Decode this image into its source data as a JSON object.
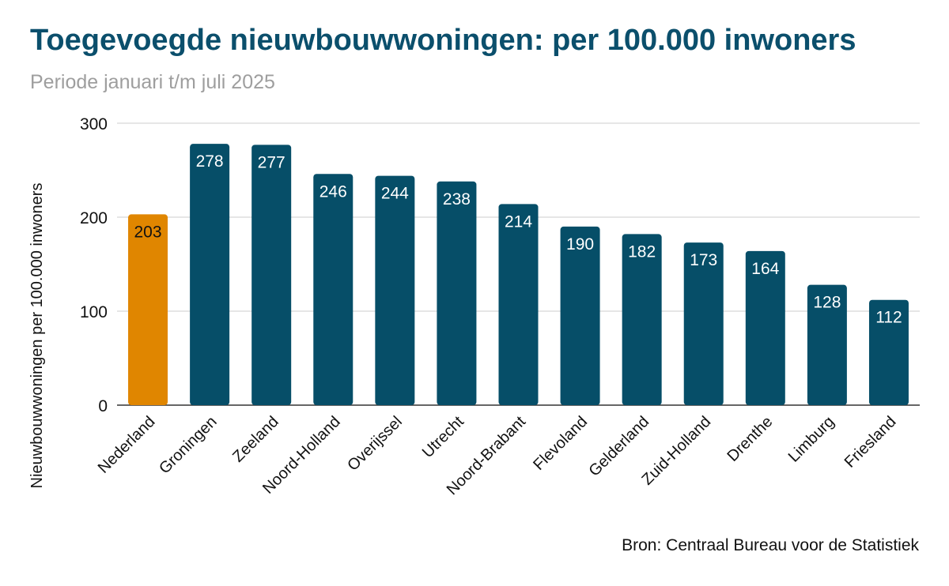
{
  "title": "Toegevoegde nieuwbouwwoningen: per 100.000 inwoners",
  "subtitle": "Periode januari t/m juli 2025",
  "source": "Bron: Centraal Bureau voor de Statistiek",
  "colors": {
    "highlight": "#e08600",
    "bar": "#064e68",
    "grid": "#cccccc",
    "axis": "#333333"
  },
  "chart_data": {
    "type": "bar",
    "title": "Toegevoegde nieuwbouwwoningen: per 100.000 inwoners",
    "subtitle": "Periode januari t/m juli 2025",
    "xlabel": "",
    "ylabel": "Nieuwbouwwoningen per 100.000 inwoners",
    "ylim": [
      0,
      300
    ],
    "yticks": [
      0,
      100,
      200,
      300
    ],
    "grid": true,
    "highlight_category": "Nederland",
    "categories": [
      "Nederland",
      "Groningen",
      "Zeeland",
      "Noord-Holland",
      "Overijssel",
      "Utrecht",
      "Noord-Brabant",
      "Flevoland",
      "Gelderland",
      "Zuid-Holland",
      "Drenthe",
      "Limburg",
      "Friesland"
    ],
    "values": [
      203,
      278,
      277,
      246,
      244,
      238,
      214,
      190,
      182,
      173,
      164,
      128,
      112
    ]
  }
}
